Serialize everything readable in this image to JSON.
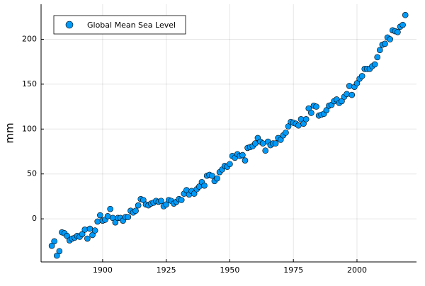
{
  "chart_data": {
    "type": "scatter",
    "y_label": "mm",
    "series": [
      {
        "name": "Global Mean Sea Level",
        "color": "#009af9",
        "x": [
          1880,
          1881,
          1882,
          1883,
          1884,
          1885,
          1886,
          1887,
          1888,
          1889,
          1890,
          1891,
          1892,
          1893,
          1894,
          1895,
          1896,
          1897,
          1898,
          1899,
          1900,
          1901,
          1902,
          1903,
          1904,
          1905,
          1906,
          1907,
          1908,
          1909,
          1910,
          1911,
          1912,
          1913,
          1914,
          1915,
          1916,
          1917,
          1918,
          1919,
          1920,
          1921,
          1922,
          1923,
          1924,
          1925,
          1926,
          1927,
          1928,
          1929,
          1930,
          1931,
          1932,
          1933,
          1934,
          1935,
          1936,
          1937,
          1938,
          1939,
          1940,
          1941,
          1942,
          1943,
          1944,
          1945,
          1946,
          1947,
          1948,
          1949,
          1950,
          1951,
          1952,
          1953,
          1954,
          1955,
          1956,
          1957,
          1958,
          1959,
          1960,
          1961,
          1962,
          1963,
          1964,
          1965,
          1966,
          1967,
          1968,
          1969,
          1970,
          1971,
          1972,
          1973,
          1974,
          1975,
          1976,
          1977,
          1978,
          1979,
          1980,
          1981,
          1982,
          1983,
          1984,
          1985,
          1986,
          1987,
          1988,
          1989,
          1990,
          1991,
          1992,
          1993,
          1994,
          1995,
          1996,
          1997,
          1998,
          1999,
          2000,
          2001,
          2002,
          2003,
          2004,
          2005,
          2006,
          2007,
          2008,
          2009,
          2010,
          2011,
          2012,
          2013,
          2014,
          2015,
          2016,
          2017,
          2018,
          2019
        ],
        "values": [
          -30,
          -25,
          -41,
          -36,
          -15,
          -16,
          -19,
          -24,
          -22,
          -21,
          -19,
          -20,
          -17,
          -12,
          -22,
          -11,
          -18,
          -13,
          -3,
          4,
          -2,
          -1,
          3,
          11,
          1,
          -4,
          1,
          1,
          -2,
          2,
          2,
          9,
          7,
          9,
          15,
          22,
          21,
          16,
          15,
          17,
          18,
          20,
          19,
          20,
          14,
          16,
          21,
          20,
          17,
          19,
          22,
          21,
          28,
          32,
          27,
          31,
          28,
          33,
          36,
          41,
          37,
          48,
          49,
          48,
          42,
          45,
          52,
          55,
          59,
          58,
          61,
          70,
          68,
          72,
          70,
          71,
          65,
          79,
          80,
          81,
          84,
          90,
          86,
          84,
          76,
          86,
          82,
          84,
          84,
          90,
          88,
          93,
          96,
          103,
          108,
          107,
          106,
          104,
          111,
          106,
          111,
          123,
          118,
          126,
          125,
          115,
          116,
          117,
          121,
          126,
          127,
          131,
          133,
          129,
          131,
          136,
          139,
          148,
          138,
          147,
          151,
          156,
          159,
          167,
          167,
          167,
          170,
          172,
          180,
          188,
          194,
          195,
          202,
          200,
          210,
          209,
          208,
          214,
          216,
          227
        ]
      }
    ],
    "xlim": [
      1875.8,
      2023.4
    ],
    "ylim": [
      -48,
      239
    ],
    "xticks": [
      1900,
      1925,
      1950,
      1975,
      2000
    ],
    "yticks": [
      0,
      50,
      100,
      150,
      200
    ],
    "grid": true,
    "legend": "top-left"
  }
}
